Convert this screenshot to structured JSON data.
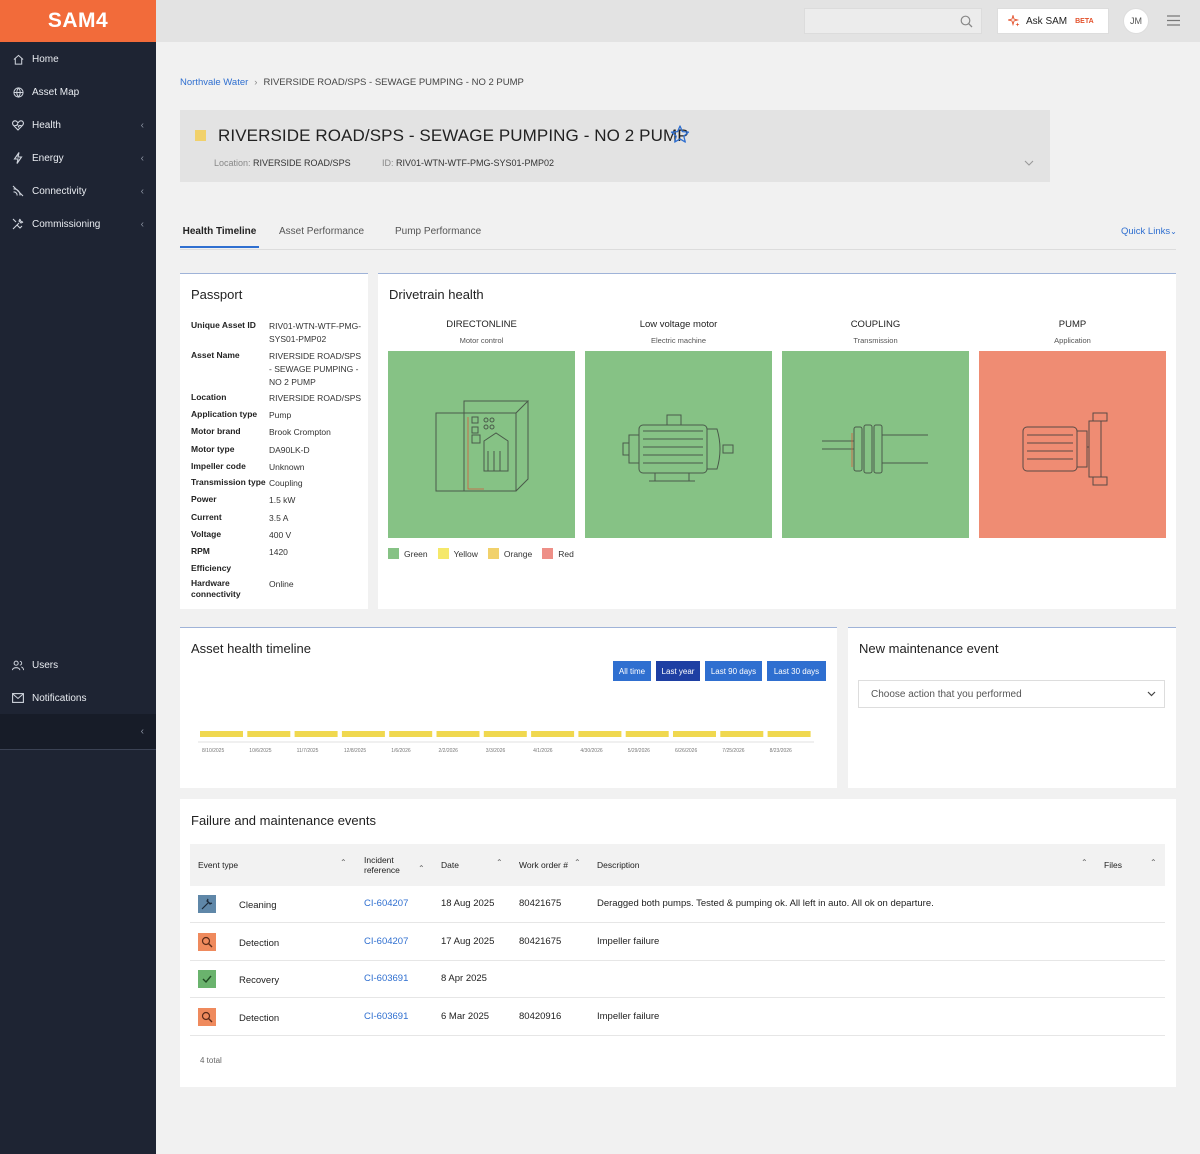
{
  "sidebar": {
    "brand": "SAM4",
    "items": [
      {
        "label": "Home",
        "icon": "home-icon"
      },
      {
        "label": "Asset Map",
        "icon": "globe-icon"
      },
      {
        "label": "Health",
        "icon": "heart-icon"
      },
      {
        "label": "Energy",
        "icon": "bolt-icon"
      },
      {
        "label": "Connectivity",
        "icon": "signal-icon"
      },
      {
        "label": "Commissioning",
        "icon": "tools-icon"
      },
      {
        "label": "Users",
        "icon": "users-icon"
      },
      {
        "label": "Notifications",
        "icon": "mail-icon"
      }
    ],
    "chevron": "‹"
  },
  "topbar": {
    "search_placeholder": "",
    "ask_label": "Ask SAM",
    "ask_badge": "BETA",
    "avatar_initials": "JM"
  },
  "breadcrumb": {
    "root": "Northvale Water",
    "separator": "›",
    "current": "RIVERSIDE ROAD/SPS - SEWAGE PUMPING - NO 2 PUMP"
  },
  "header": {
    "title": "RIVERSIDE ROAD/SPS - SEWAGE PUMPING - NO 2 PUMP",
    "location_label": "Location:",
    "location_value": "RIVERSIDE ROAD/SPS",
    "id_label": "ID:",
    "id_value": "RIV01-WTN-WTF-PMG-SYS01-PMP02",
    "status_color": "#f1d16b"
  },
  "tabs": [
    {
      "label": "Health Timeline",
      "active": true
    },
    {
      "label": "Asset Performance",
      "active": false
    },
    {
      "label": "Pump Performance",
      "active": false
    }
  ],
  "quick_links": "Quick Links",
  "passport": {
    "title": "Passport",
    "rows": [
      {
        "label": "Unique Asset ID",
        "value": "RIV01-WTN-WTF-PMG-SYS01-PMP02"
      },
      {
        "label": "Asset Name",
        "value": "RIVERSIDE ROAD/SPS - SEWAGE PUMPING - NO 2 PUMP"
      },
      {
        "label": "Location",
        "value": "RIVERSIDE ROAD/SPS"
      },
      {
        "label": "Application type",
        "value": "Pump"
      },
      {
        "label": "Motor brand",
        "value": "Brook Crompton"
      },
      {
        "label": "Motor type",
        "value": "DA90LK-D"
      },
      {
        "label": "Impeller code",
        "value": "Unknown"
      },
      {
        "label": "Transmission type",
        "value": "Coupling"
      },
      {
        "label": "Power",
        "value": "1.5 kW"
      },
      {
        "label": "Current",
        "value": "3.5 A"
      },
      {
        "label": "Voltage",
        "value": "400 V"
      },
      {
        "label": "RPM",
        "value": "1420"
      },
      {
        "label": "Efficiency",
        "value": ""
      },
      {
        "label": "Hardware connectivity",
        "value": "Online"
      }
    ]
  },
  "drivetrain": {
    "title": "Drivetrain health",
    "components": [
      {
        "name": "DIRECTONLINE",
        "sub": "Motor control",
        "status": "green",
        "color": "#86c285",
        "icon": "motor-control-icon"
      },
      {
        "name": "Low voltage motor",
        "sub": "Electric machine",
        "status": "green",
        "color": "#86c285",
        "icon": "electric-motor-icon"
      },
      {
        "name": "COUPLING",
        "sub": "Transmission",
        "status": "green",
        "color": "#86c285",
        "icon": "coupling-icon"
      },
      {
        "name": "PUMP",
        "sub": "Application",
        "status": "red",
        "color": "#ef8c73",
        "icon": "pump-icon"
      }
    ],
    "legend": [
      {
        "label": "Green",
        "color": "#86c285"
      },
      {
        "label": "Yellow",
        "color": "#f5e86a"
      },
      {
        "label": "Orange",
        "color": "#f1d16b"
      },
      {
        "label": "Red",
        "color": "#ee8f87"
      }
    ]
  },
  "timeline": {
    "title": "Asset health timeline",
    "ranges": [
      {
        "label": "All time",
        "active": false
      },
      {
        "label": "Last year",
        "active": true
      },
      {
        "label": "Last 90 days",
        "active": false
      },
      {
        "label": "Last 30 days",
        "active": false
      }
    ],
    "bar_color": "#f0d84f",
    "dates": [
      "8/10/2025",
      "10/6/2025",
      "11/7/2025",
      "12/8/2025",
      "1/6/2026",
      "2/2/2026",
      "3/3/2026",
      "4/1/2026",
      "4/30/2026",
      "5/29/2026",
      "6/26/2026",
      "7/25/2026",
      "8/23/2026"
    ]
  },
  "maintenance": {
    "title": "New maintenance event",
    "select_placeholder": "Choose action that you performed"
  },
  "events": {
    "title": "Failure and maintenance events",
    "columns": [
      {
        "label": "Event type"
      },
      {
        "label": "Incident reference"
      },
      {
        "label": "Date"
      },
      {
        "label": "Work order #"
      },
      {
        "label": "Description"
      },
      {
        "label": "Files"
      }
    ],
    "sort_glyph": "⌃",
    "rows": [
      {
        "type": "Cleaning",
        "icon": "cleaning-icon",
        "icon_bg": "#5f87a8",
        "ref": "CI-604207",
        "date": "18 Aug 2025",
        "wo": "80421675",
        "desc": "Deragged both pumps. Tested & pumping ok. All left in auto. All ok on departure."
      },
      {
        "type": "Detection",
        "icon": "magnifier-icon",
        "icon_bg": "#ef8a5d",
        "ref": "CI-604207",
        "date": "17 Aug 2025",
        "wo": "80421675",
        "desc": "Impeller failure"
      },
      {
        "type": "Recovery",
        "icon": "check-icon",
        "icon_bg": "#6ab36d",
        "ref": "CI-603691",
        "date": "8 Apr 2025",
        "wo": "",
        "desc": ""
      },
      {
        "type": "Detection",
        "icon": "magnifier-icon",
        "icon_bg": "#ef8a5d",
        "ref": "CI-603691",
        "date": "6 Mar 2025",
        "wo": "80420916",
        "desc": "Impeller failure"
      }
    ],
    "total": "4 total"
  }
}
